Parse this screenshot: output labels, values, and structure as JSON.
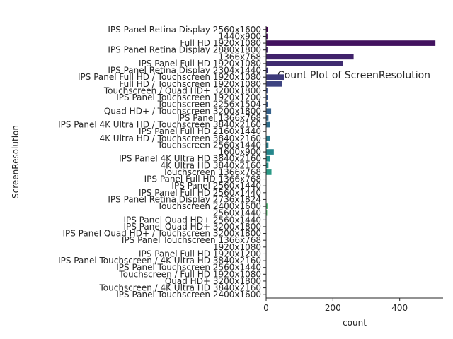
{
  "chart_data": {
    "type": "bar",
    "orientation": "horizontal",
    "title": "Count Plot of ScreenResolution",
    "xlabel": "count",
    "ylabel": "ScreenResolution",
    "xlim": [
      0,
      530
    ],
    "xticks": [
      0,
      200,
      400
    ],
    "grid": false,
    "legend": "none",
    "palette": "viridis",
    "categories": [
      "IPS Panel Retina Display 2560x1600",
      "1440x900",
      "Full HD 1920x1080",
      "IPS Panel Retina Display 2880x1800",
      "1366x768",
      "IPS Panel Full HD 1920x1080",
      "IPS Panel Retina Display 2304x1440",
      "IPS Panel Full HD / Touchscreen 1920x1080",
      "Full HD / Touchscreen 1920x1080",
      "Touchscreen / Quad HD+ 3200x1800",
      "IPS Panel Touchscreen 1920x1200",
      "Touchscreen 2256x1504",
      "Quad HD+ / Touchscreen 3200x1800",
      "IPS Panel 1366x768",
      "IPS Panel 4K Ultra HD / Touchscreen 3840x2160",
      "IPS Panel Full HD 2160x1440",
      "4K Ultra HD / Touchscreen 3840x2160",
      "Touchscreen 2560x1440",
      "1600x900",
      "IPS Panel 4K Ultra HD 3840x2160",
      "4K Ultra HD 3840x2160",
      "Touchscreen 1366x768",
      "IPS Panel Full HD 1366x768",
      "IPS Panel 2560x1440",
      "IPS Panel Full HD 2560x1440",
      "IPS Panel Retina Display 2736x1824",
      "Touchscreen 2400x1600",
      "2560x1440",
      "IPS Panel Quad HD+ 2560x1440",
      "IPS Panel Quad HD+ 3200x1800",
      "IPS Panel Quad HD+ / Touchscreen 3200x1800",
      "IPS Panel Touchscreen 1366x768",
      "1920x1080",
      "IPS Panel Full HD 1920x1200",
      "IPS Panel Touchscreen / 4K Ultra HD 3840x2160",
      "IPS Panel Touchscreen 2560x1440",
      "Touchscreen / Full HD 1920x1080",
      "Quad HD+ 3200x1800",
      "Touchscreen / 4K Ultra HD 3840x2160",
      "IPS Panel Touchscreen 2400x1600"
    ],
    "values": [
      6,
      4,
      507,
      4,
      262,
      230,
      6,
      53,
      47,
      4,
      5,
      6,
      15,
      7,
      11,
      1,
      11,
      7,
      23,
      12,
      7,
      16,
      1,
      1,
      1,
      1,
      4,
      3,
      1,
      1,
      1,
      1,
      1,
      1,
      1,
      1,
      1,
      1,
      1,
      1
    ]
  }
}
